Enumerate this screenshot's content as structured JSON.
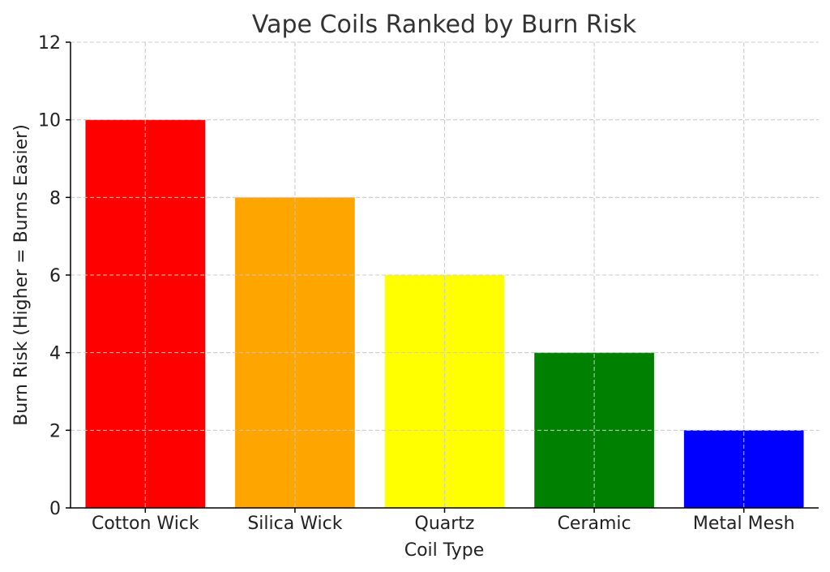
{
  "chart_data": {
    "type": "bar",
    "title": "Vape Coils Ranked by Burn Risk",
    "xlabel": "Coil Type",
    "ylabel": "Burn Risk (Higher = Burns Easier)",
    "categories": [
      "Cotton Wick",
      "Silica Wick",
      "Quartz",
      "Ceramic",
      "Metal Mesh"
    ],
    "values": [
      10,
      8,
      6,
      4,
      2
    ],
    "colors": [
      "#ff0000",
      "#ffa500",
      "#ffff00",
      "#008000",
      "#0000ff"
    ],
    "ylim": [
      0,
      12
    ],
    "yticks": [
      0,
      2,
      4,
      6,
      8,
      10,
      12
    ],
    "grid": true
  }
}
